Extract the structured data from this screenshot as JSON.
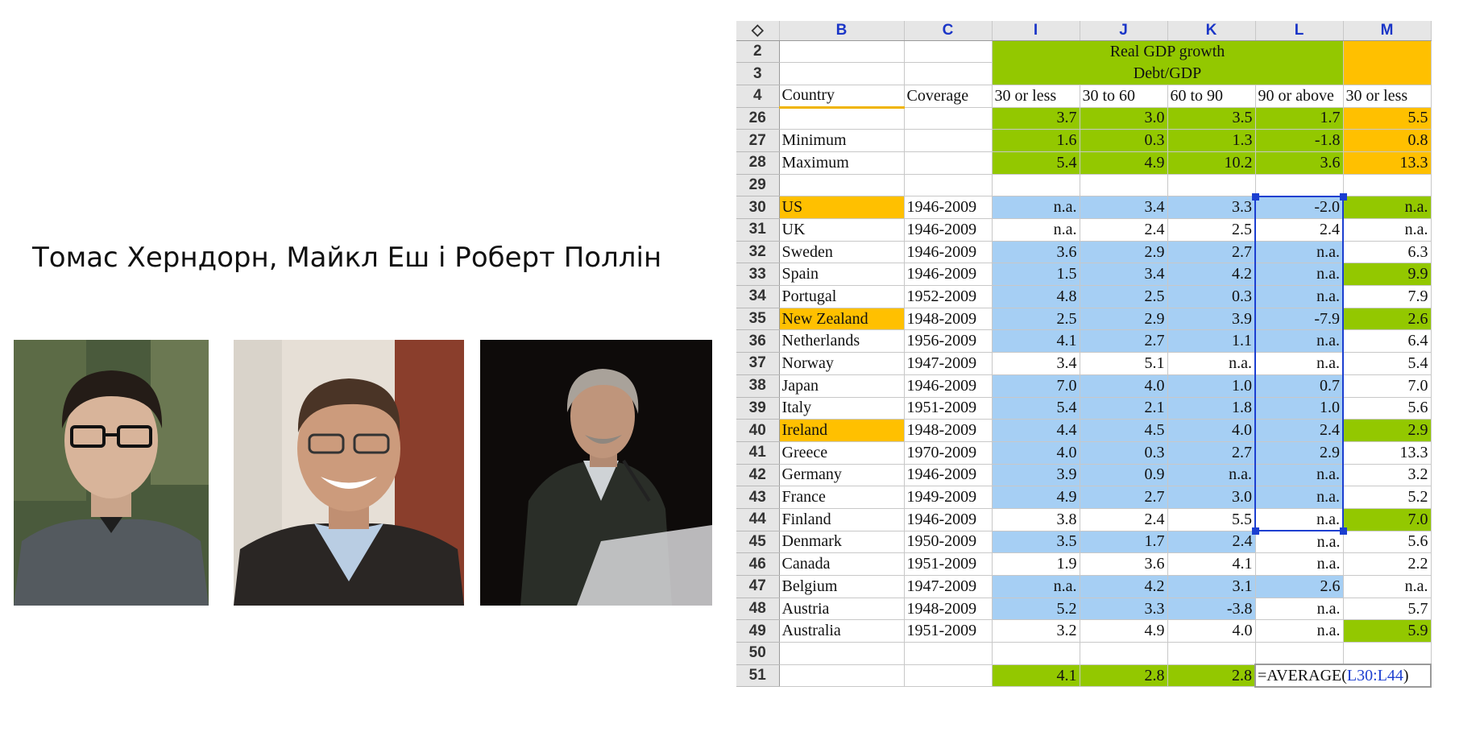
{
  "caption": "Томас Херндорн, Майкл Еш і Роберт Поллін",
  "colors": {
    "green": "#93c800",
    "orange": "#ffc000",
    "blue": "#a6cff4",
    "selection": "#1c3fd0"
  },
  "sheet": {
    "corner": "◇",
    "columns": [
      "B",
      "C",
      "I",
      "J",
      "K",
      "L",
      "M"
    ],
    "rows": {
      "r2": {
        "num": "2",
        "title": "Real GDP growth"
      },
      "r3": {
        "num": "3",
        "title": "Debt/GDP"
      },
      "r4": {
        "num": "4",
        "country": "Country",
        "coverage": "Coverage",
        "i": "30 or less",
        "j": "30 to 60",
        "k": "60 to 90",
        "l": "90 or above",
        "m": "30 or less"
      },
      "r26": {
        "num": "26",
        "i": "3.7",
        "j": "3.0",
        "k": "3.5",
        "l": "1.7",
        "m": "5.5"
      },
      "r27": {
        "num": "27",
        "label": "Minimum",
        "i": "1.6",
        "j": "0.3",
        "k": "1.3",
        "l": "-1.8",
        "m": "0.8"
      },
      "r28": {
        "num": "28",
        "label": "Maximum",
        "i": "5.4",
        "j": "4.9",
        "k": "10.2",
        "l": "3.6",
        "m": "13.3"
      },
      "r29": {
        "num": "29"
      },
      "r50": {
        "num": "50"
      },
      "r51": {
        "num": "51",
        "i": "4.1",
        "j": "2.8",
        "k": "2.8",
        "formula_prefix": "=AVERAGE(",
        "formula_ref": "L30:L44",
        "formula_suffix": ")"
      }
    },
    "countries": [
      {
        "row": "30",
        "country": "US",
        "coverage": "1946-2009",
        "i": "n.a.",
        "j": "3.4",
        "k": "3.3",
        "l": "-2.0",
        "m": "n.a."
      },
      {
        "row": "31",
        "country": "UK",
        "coverage": "1946-2009",
        "i": "n.a.",
        "j": "2.4",
        "k": "2.5",
        "l": "2.4",
        "m": "n.a."
      },
      {
        "row": "32",
        "country": "Sweden",
        "coverage": "1946-2009",
        "i": "3.6",
        "j": "2.9",
        "k": "2.7",
        "l": "n.a.",
        "m": "6.3"
      },
      {
        "row": "33",
        "country": "Spain",
        "coverage": "1946-2009",
        "i": "1.5",
        "j": "3.4",
        "k": "4.2",
        "l": "n.a.",
        "m": "9.9"
      },
      {
        "row": "34",
        "country": "Portugal",
        "coverage": "1952-2009",
        "i": "4.8",
        "j": "2.5",
        "k": "0.3",
        "l": "n.a.",
        "m": "7.9"
      },
      {
        "row": "35",
        "country": "New Zealand",
        "coverage": "1948-2009",
        "i": "2.5",
        "j": "2.9",
        "k": "3.9",
        "l": "-7.9",
        "m": "2.6"
      },
      {
        "row": "36",
        "country": "Netherlands",
        "coverage": "1956-2009",
        "i": "4.1",
        "j": "2.7",
        "k": "1.1",
        "l": "n.a.",
        "m": "6.4"
      },
      {
        "row": "37",
        "country": "Norway",
        "coverage": "1947-2009",
        "i": "3.4",
        "j": "5.1",
        "k": "n.a.",
        "l": "n.a.",
        "m": "5.4"
      },
      {
        "row": "38",
        "country": "Japan",
        "coverage": "1946-2009",
        "i": "7.0",
        "j": "4.0",
        "k": "1.0",
        "l": "0.7",
        "m": "7.0"
      },
      {
        "row": "39",
        "country": "Italy",
        "coverage": "1951-2009",
        "i": "5.4",
        "j": "2.1",
        "k": "1.8",
        "l": "1.0",
        "m": "5.6"
      },
      {
        "row": "40",
        "country": "Ireland",
        "coverage": "1948-2009",
        "i": "4.4",
        "j": "4.5",
        "k": "4.0",
        "l": "2.4",
        "m": "2.9"
      },
      {
        "row": "41",
        "country": "Greece",
        "coverage": "1970-2009",
        "i": "4.0",
        "j": "0.3",
        "k": "2.7",
        "l": "2.9",
        "m": "13.3"
      },
      {
        "row": "42",
        "country": "Germany",
        "coverage": "1946-2009",
        "i": "3.9",
        "j": "0.9",
        "k": "n.a.",
        "l": "n.a.",
        "m": "3.2"
      },
      {
        "row": "43",
        "country": "France",
        "coverage": "1949-2009",
        "i": "4.9",
        "j": "2.7",
        "k": "3.0",
        "l": "n.a.",
        "m": "5.2"
      },
      {
        "row": "44",
        "country": "Finland",
        "coverage": "1946-2009",
        "i": "3.8",
        "j": "2.4",
        "k": "5.5",
        "l": "n.a.",
        "m": "7.0"
      },
      {
        "row": "45",
        "country": "Denmark",
        "coverage": "1950-2009",
        "i": "3.5",
        "j": "1.7",
        "k": "2.4",
        "l": "n.a.",
        "m": "5.6"
      },
      {
        "row": "46",
        "country": "Canada",
        "coverage": "1951-2009",
        "i": "1.9",
        "j": "3.6",
        "k": "4.1",
        "l": "n.a.",
        "m": "2.2"
      },
      {
        "row": "47",
        "country": "Belgium",
        "coverage": "1947-2009",
        "i": "n.a.",
        "j": "4.2",
        "k": "3.1",
        "l": "2.6",
        "m": "n.a."
      },
      {
        "row": "48",
        "country": "Austria",
        "coverage": "1948-2009",
        "i": "5.2",
        "j": "3.3",
        "k": "-3.8",
        "l": "n.a.",
        "m": "5.7"
      },
      {
        "row": "49",
        "country": "Australia",
        "coverage": "1951-2009",
        "i": "3.2",
        "j": "4.9",
        "k": "4.0",
        "l": "n.a.",
        "m": "5.9"
      }
    ]
  }
}
